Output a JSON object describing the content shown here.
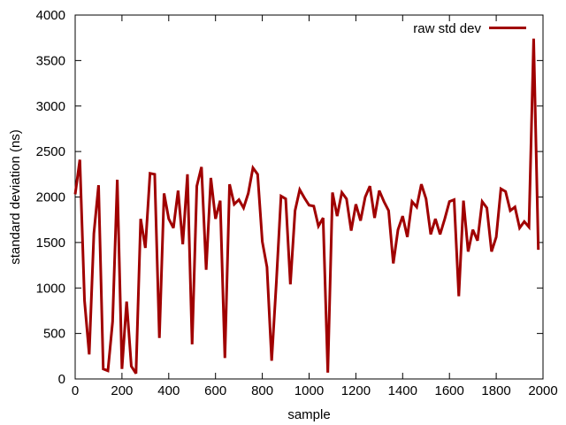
{
  "chart_data": {
    "type": "line",
    "title": "",
    "xlabel": "sample",
    "ylabel": "standard deviation (ns)",
    "xlim": [
      0,
      2000
    ],
    "ylim": [
      0,
      4000
    ],
    "xticks": [
      0,
      200,
      400,
      600,
      800,
      1000,
      1200,
      1400,
      1600,
      1800,
      2000
    ],
    "yticks": [
      0,
      500,
      1000,
      1500,
      2000,
      2500,
      3000,
      3500,
      4000
    ],
    "grid": false,
    "legend_position": "top-right",
    "series": [
      {
        "name": "raw std dev",
        "color": "#a00000",
        "points": [
          [
            0,
            2030
          ],
          [
            20,
            2410
          ],
          [
            40,
            860
          ],
          [
            60,
            270
          ],
          [
            80,
            1600
          ],
          [
            100,
            2130
          ],
          [
            120,
            110
          ],
          [
            140,
            90
          ],
          [
            160,
            630
          ],
          [
            180,
            2190
          ],
          [
            200,
            110
          ],
          [
            220,
            850
          ],
          [
            240,
            140
          ],
          [
            260,
            60
          ],
          [
            280,
            1760
          ],
          [
            300,
            1440
          ],
          [
            320,
            2260
          ],
          [
            340,
            2250
          ],
          [
            360,
            450
          ],
          [
            380,
            2040
          ],
          [
            400,
            1760
          ],
          [
            420,
            1660
          ],
          [
            440,
            2070
          ],
          [
            460,
            1480
          ],
          [
            480,
            2250
          ],
          [
            500,
            380
          ],
          [
            520,
            2120
          ],
          [
            540,
            2330
          ],
          [
            560,
            1200
          ],
          [
            580,
            2210
          ],
          [
            600,
            1760
          ],
          [
            620,
            1960
          ],
          [
            640,
            230
          ],
          [
            660,
            2140
          ],
          [
            680,
            1920
          ],
          [
            700,
            1970
          ],
          [
            720,
            1880
          ],
          [
            740,
            2040
          ],
          [
            760,
            2320
          ],
          [
            780,
            2250
          ],
          [
            800,
            1510
          ],
          [
            820,
            1230
          ],
          [
            840,
            200
          ],
          [
            860,
            1060
          ],
          [
            880,
            2010
          ],
          [
            900,
            1980
          ],
          [
            920,
            1040
          ],
          [
            940,
            1850
          ],
          [
            960,
            2080
          ],
          [
            980,
            1990
          ],
          [
            1000,
            1910
          ],
          [
            1020,
            1900
          ],
          [
            1040,
            1680
          ],
          [
            1060,
            1770
          ],
          [
            1080,
            70
          ],
          [
            1100,
            2050
          ],
          [
            1120,
            1790
          ],
          [
            1140,
            2050
          ],
          [
            1160,
            1980
          ],
          [
            1180,
            1630
          ],
          [
            1200,
            1920
          ],
          [
            1220,
            1740
          ],
          [
            1240,
            2000
          ],
          [
            1260,
            2120
          ],
          [
            1280,
            1770
          ],
          [
            1300,
            2070
          ],
          [
            1320,
            1950
          ],
          [
            1340,
            1850
          ],
          [
            1360,
            1270
          ],
          [
            1380,
            1640
          ],
          [
            1400,
            1790
          ],
          [
            1420,
            1560
          ],
          [
            1440,
            1950
          ],
          [
            1460,
            1890
          ],
          [
            1480,
            2140
          ],
          [
            1500,
            1980
          ],
          [
            1520,
            1590
          ],
          [
            1540,
            1760
          ],
          [
            1560,
            1590
          ],
          [
            1580,
            1760
          ],
          [
            1600,
            1950
          ],
          [
            1620,
            1970
          ],
          [
            1640,
            910
          ],
          [
            1660,
            1960
          ],
          [
            1680,
            1400
          ],
          [
            1700,
            1640
          ],
          [
            1720,
            1520
          ],
          [
            1740,
            1950
          ],
          [
            1760,
            1880
          ],
          [
            1780,
            1400
          ],
          [
            1800,
            1560
          ],
          [
            1820,
            2090
          ],
          [
            1840,
            2060
          ],
          [
            1860,
            1850
          ],
          [
            1880,
            1890
          ],
          [
            1900,
            1660
          ],
          [
            1920,
            1730
          ],
          [
            1940,
            1670
          ],
          [
            1960,
            3740
          ],
          [
            1980,
            1420
          ]
        ]
      }
    ]
  }
}
